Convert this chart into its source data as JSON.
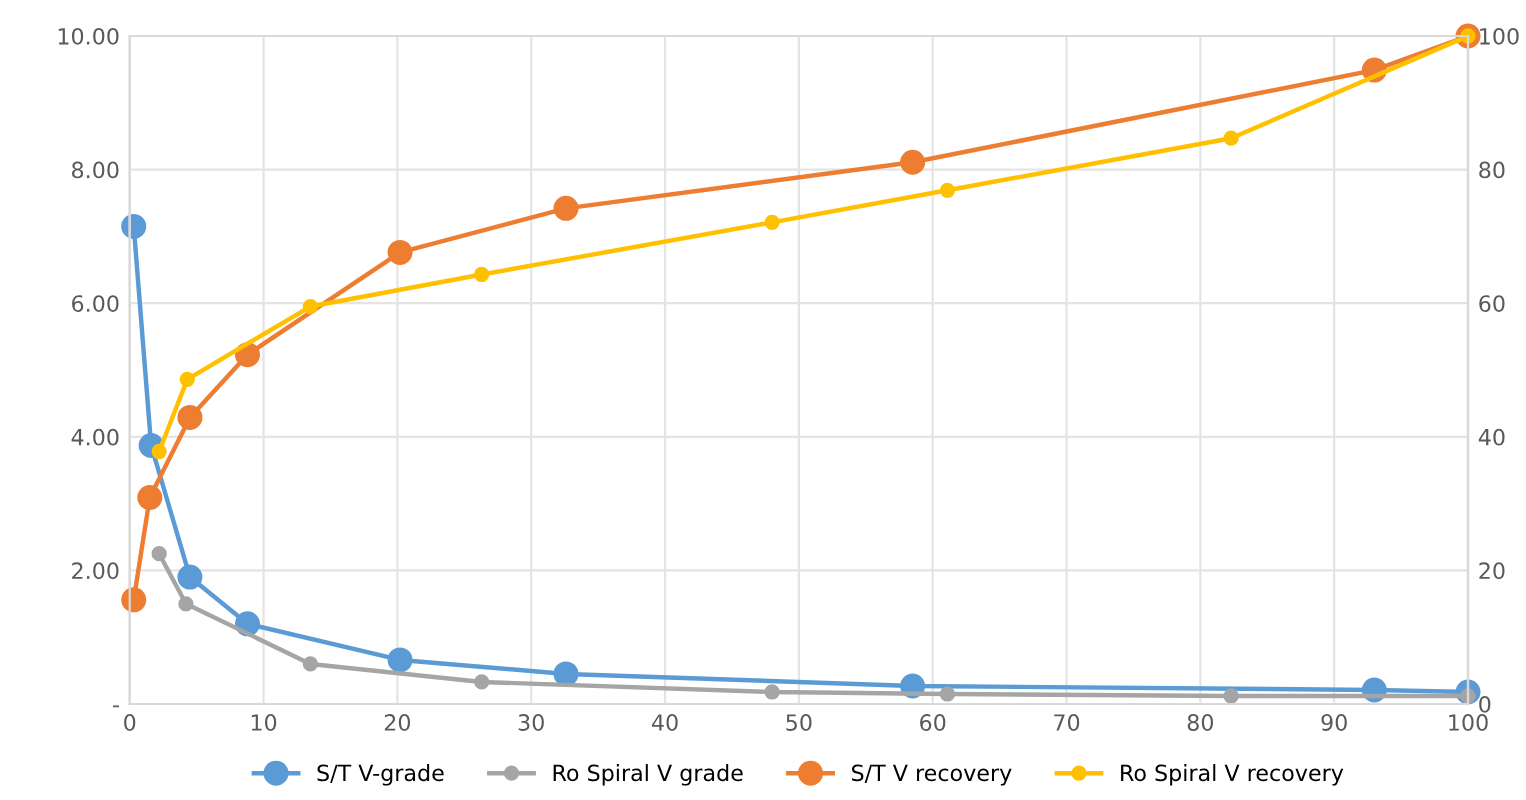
{
  "chart_data": {
    "type": "line",
    "marker": "circle",
    "grid": true,
    "legend": "bottom",
    "xlim": [
      0,
      100
    ],
    "xticks": [
      0,
      10,
      20,
      30,
      40,
      50,
      60,
      70,
      80,
      90,
      100
    ],
    "ylim": [
      0,
      10
    ],
    "yticks": [
      {
        "value": 0,
        "label": "-"
      },
      {
        "value": 2,
        "label": "2.00"
      },
      {
        "value": 4,
        "label": "4.00"
      },
      {
        "value": 6,
        "label": "6.00"
      },
      {
        "value": 8,
        "label": "8.00"
      },
      {
        "value": 10,
        "label": "10.00"
      }
    ],
    "y2lim": [
      0,
      100
    ],
    "y2ticks": [
      0,
      20,
      40,
      60,
      80,
      100
    ],
    "series": [
      {
        "name": "S/T V-grade",
        "color": "#5b9bd5",
        "x": [
          0.3,
          1.6,
          4.5,
          8.8,
          20.2,
          32.6,
          58.5,
          93,
          100
        ],
        "values": [
          7.15,
          3.87,
          1.9,
          1.2,
          0.66,
          0.45,
          0.27,
          0.21,
          0.18
        ]
      },
      {
        "name": "Ro Spiral V grade",
        "color": "#a5a5a5",
        "x": [
          2.2,
          4.2,
          13.5,
          26.3,
          48,
          61.1,
          82.3,
          100
        ],
        "values": [
          2.25,
          1.5,
          0.6,
          0.33,
          0.18,
          0.15,
          0.12,
          0.12
        ]
      },
      {
        "name": "S/T V recovery",
        "color": "#ed7d31",
        "axis": "y2",
        "x": [
          0.3,
          1.5,
          4.5,
          8.8,
          20.2,
          32.6,
          58.5,
          93,
          100
        ],
        "values": [
          15.6,
          30.9,
          42.9,
          52.3,
          67.6,
          74.2,
          81.1,
          94.9,
          100
        ]
      },
      {
        "name": "Ro Spiral V recovery",
        "color": "#ffc000",
        "axis": "y2",
        "x": [
          2.2,
          4.3,
          13.5,
          26.3,
          48,
          61.1,
          82.3,
          100
        ],
        "values": [
          37.8,
          48.6,
          59.5,
          64.3,
          72.1,
          76.9,
          84.7,
          100
        ]
      }
    ]
  }
}
